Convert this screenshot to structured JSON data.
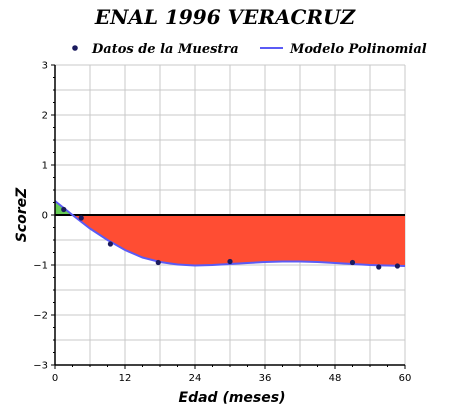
{
  "chart_data": {
    "type": "line",
    "title": "ENAL 1996 VERACRUZ",
    "xlabel": "Edad (meses)",
    "ylabel": "ScoreZ",
    "xlim": [
      0,
      60
    ],
    "ylim": [
      -3,
      3
    ],
    "x_ticks": [
      0,
      12,
      24,
      36,
      48,
      60
    ],
    "y_ticks": [
      -3,
      -2,
      -1,
      0,
      1,
      2,
      3
    ],
    "grid": true,
    "legend_position": "top",
    "series": [
      {
        "name": "Datos de la Muestra",
        "kind": "scatter",
        "color": "#1a1a5e",
        "points": [
          {
            "x": 1.5,
            "y": 0.11
          },
          {
            "x": 4.5,
            "y": -0.06
          },
          {
            "x": 9.5,
            "y": -0.58
          },
          {
            "x": 17.7,
            "y": -0.95
          },
          {
            "x": 30.0,
            "y": -0.93
          },
          {
            "x": 51.0,
            "y": -0.95
          },
          {
            "x": 55.5,
            "y": -1.04
          },
          {
            "x": 58.7,
            "y": -1.02
          }
        ]
      },
      {
        "name": "Modelo Polinomial",
        "kind": "line",
        "color": "#5b5bf5",
        "points": [
          {
            "x": 0,
            "y": 0.28
          },
          {
            "x": 3,
            "y": 0.0
          },
          {
            "x": 6,
            "y": -0.27
          },
          {
            "x": 9,
            "y": -0.5
          },
          {
            "x": 12,
            "y": -0.7
          },
          {
            "x": 15,
            "y": -0.85
          },
          {
            "x": 18,
            "y": -0.94
          },
          {
            "x": 21,
            "y": -0.99
          },
          {
            "x": 24,
            "y": -1.01
          },
          {
            "x": 27,
            "y": -1.0
          },
          {
            "x": 30,
            "y": -0.98
          },
          {
            "x": 33,
            "y": -0.96
          },
          {
            "x": 36,
            "y": -0.94
          },
          {
            "x": 39,
            "y": -0.93
          },
          {
            "x": 42,
            "y": -0.93
          },
          {
            "x": 45,
            "y": -0.94
          },
          {
            "x": 48,
            "y": -0.96
          },
          {
            "x": 51,
            "y": -0.98
          },
          {
            "x": 54,
            "y": -1.0
          },
          {
            "x": 57,
            "y": -1.01
          },
          {
            "x": 60,
            "y": -1.02
          }
        ]
      }
    ],
    "fill_below_zero_color": "#ff4d33",
    "fill_above_zero_color": "#66cc55",
    "zero_line_color": "#000000",
    "grid_color": "#c8c8c8"
  }
}
